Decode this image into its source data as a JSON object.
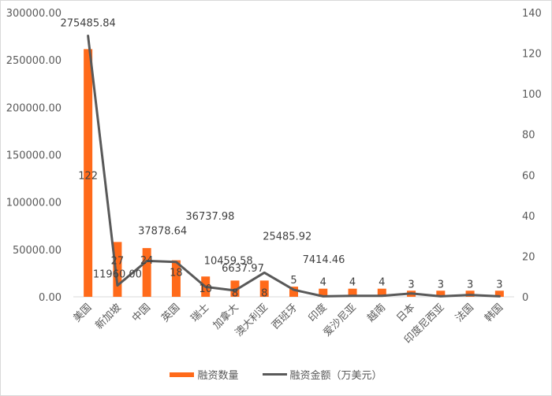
{
  "chart_data": {
    "type": "bar+line",
    "title": "",
    "categories": [
      "美国",
      "新加坡",
      "中国",
      "英国",
      "瑞士",
      "加拿大",
      "澳大利亚",
      "西班牙",
      "印度",
      "爱沙尼亚",
      "越南",
      "日本",
      "印度尼西亚",
      "法国",
      "韩国"
    ],
    "series": [
      {
        "name": "融资数量",
        "type": "bar",
        "axis": "right",
        "color": "#ff6a1a",
        "values": [
          122,
          27,
          24,
          18,
          10,
          8,
          8,
          5,
          4,
          4,
          4,
          3,
          3,
          3,
          3
        ],
        "labels": [
          "122",
          "27",
          "24",
          "18",
          "10",
          "8",
          "8",
          "5",
          "4",
          "4",
          "4",
          "3",
          "3",
          "3",
          "3"
        ]
      },
      {
        "name": "融资金额（万美元）",
        "type": "line",
        "axis": "left",
        "color": "#595959",
        "values": [
          275485.84,
          11960.0,
          37878.64,
          36737.98,
          10459.58,
          6637.97,
          25485.92,
          7414.46,
          500,
          1000,
          1000,
          3500,
          500,
          2000,
          500
        ],
        "labels": [
          "275485.84",
          "11960.00",
          "37878.64",
          "36737.98",
          "10459.58",
          "6637.97",
          "25485.92",
          "7414.46",
          "",
          "",
          "",
          "",
          "",
          "",
          ""
        ]
      }
    ],
    "left_axis": {
      "min": 0,
      "max": 300000,
      "ticks": [
        "0.00",
        "50000.00",
        "100000.00",
        "150000.00",
        "200000.00",
        "250000.00",
        "300000.00"
      ]
    },
    "right_axis": {
      "min": 0,
      "max": 140,
      "ticks": [
        "0",
        "20",
        "40",
        "60",
        "80",
        "100",
        "120",
        "140"
      ]
    },
    "grid": false,
    "legend_position": "bottom"
  },
  "legend": {
    "bar_label": "融资数量",
    "line_label": "融资金额（万美元）"
  }
}
